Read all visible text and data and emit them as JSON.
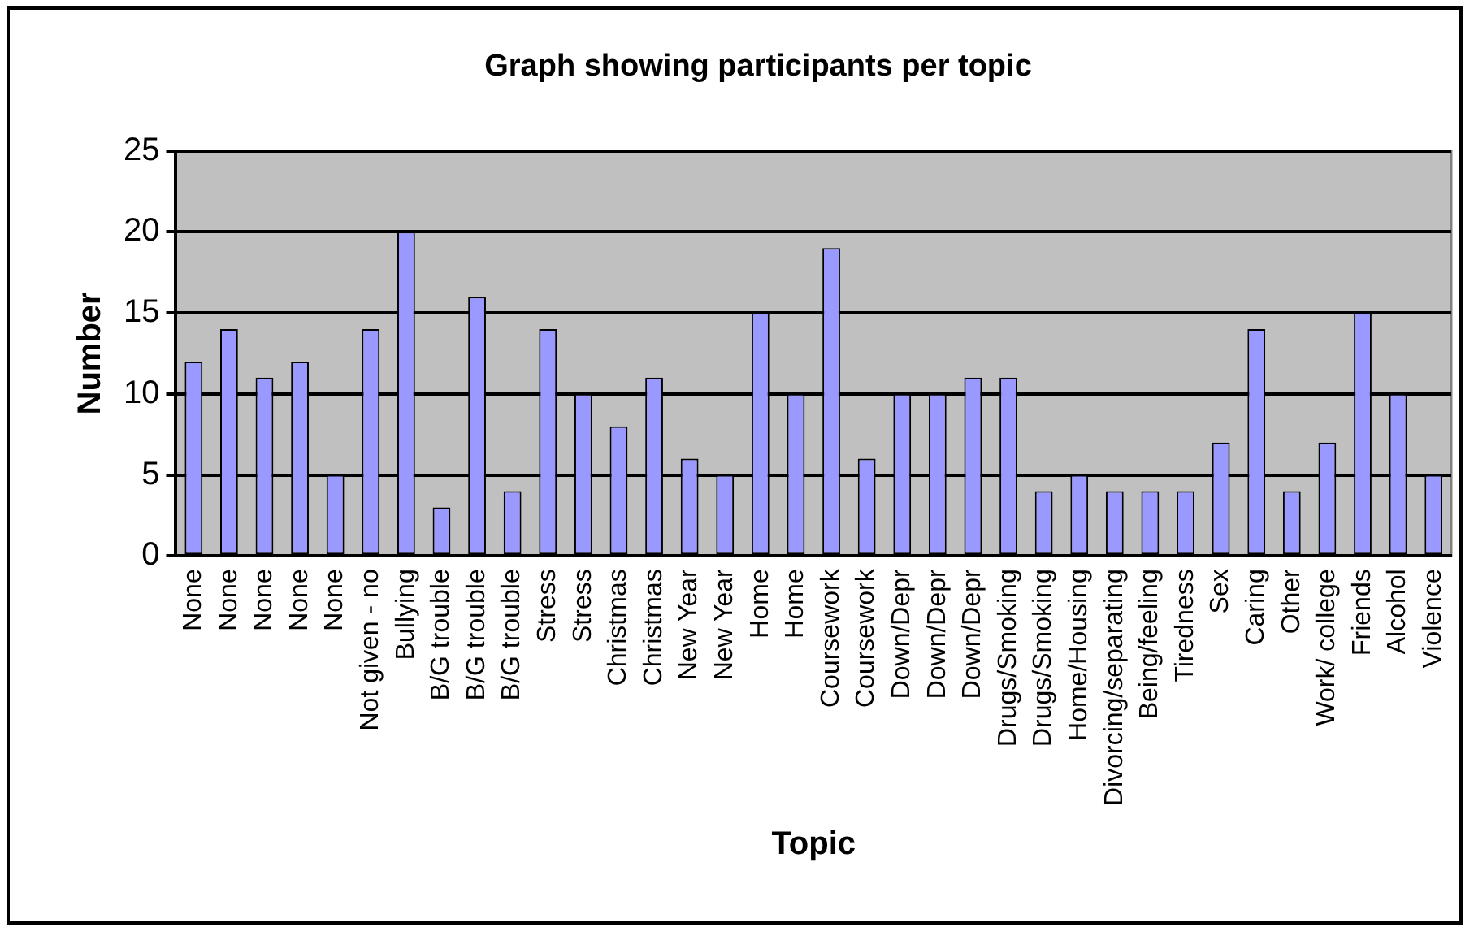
{
  "chart_data": {
    "type": "bar",
    "title": "Graph showing participants per topic",
    "xlabel": "Topic",
    "ylabel": "Number",
    "categories": [
      "None",
      "None",
      "None",
      "None",
      "None",
      "Not given - no",
      "Bullying",
      "B/G trouble",
      "B/G trouble",
      "B/G trouble",
      "Stress",
      "Stress",
      "Christmas",
      "Christmas",
      "New Year",
      "New Year",
      "Home",
      "Home",
      "Coursework",
      "Coursework",
      "Down/Depr",
      "Down/Depr",
      "Down/Depr",
      "Drugs/Smoking",
      "Drugs/Smoking",
      "Home/Housing",
      "Divorcing/separating",
      "Being/feeling",
      "Tiredness",
      "Sex",
      "Caring",
      "Other",
      "Work/ college",
      "Friends",
      "Alcohol",
      "Violence"
    ],
    "values": [
      12,
      14,
      11,
      12,
      5,
      14,
      20,
      3,
      16,
      4,
      14,
      10,
      8,
      11,
      6,
      5,
      15,
      10,
      19,
      6,
      10,
      10,
      11,
      11,
      4,
      5,
      4,
      4,
      4,
      7,
      14,
      4,
      7,
      15,
      10,
      5
    ],
    "color": "#9999ff",
    "ylim": [
      0,
      25
    ],
    "yticks": [
      0,
      5,
      10,
      15,
      20,
      25
    ],
    "grid": "y",
    "legend": false
  }
}
